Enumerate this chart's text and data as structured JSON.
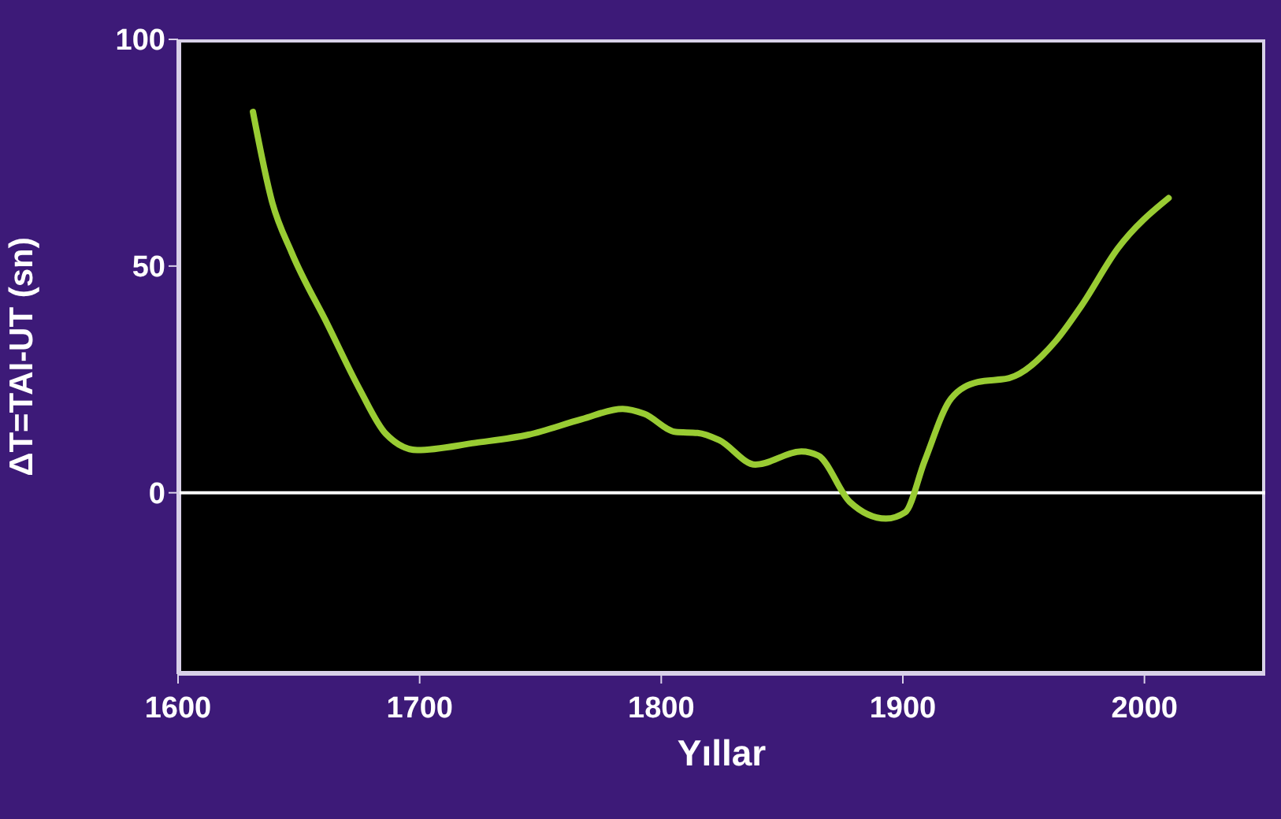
{
  "chart_data": {
    "type": "line",
    "xlabel": "Yıllar",
    "ylabel": "ΔT=TAI-UT (sn)",
    "x": [
      1631,
      1639,
      1647,
      1662,
      1675,
      1686,
      1699,
      1723,
      1745,
      1767,
      1784,
      1793,
      1806,
      1815,
      1824,
      1839,
      1858,
      1865,
      1878,
      1893,
      1901,
      1909,
      1920,
      1931,
      1944,
      1963,
      1974,
      1989,
      2010
    ],
    "series": [
      {
        "color": "#99cc33",
        "values": [
          84,
          64,
          53,
          37,
          23,
          13,
          9.4,
          11,
          12.8,
          16.2,
          18.5,
          17.4,
          13.4,
          13.2,
          11.6,
          6.2,
          9.1,
          8.2,
          -2,
          -5.7,
          -4.3,
          7,
          20.8,
          24.4,
          25.3,
          33.3,
          41.3,
          53.9,
          65
        ]
      }
    ],
    "xlim": [
      1600,
      2050
    ],
    "xticks": [
      1600,
      1700,
      1800,
      1900,
      2000
    ],
    "ylim": [
      -40,
      100
    ],
    "yticks": [
      0,
      50,
      100
    ],
    "ref_lines": [
      {
        "axis": "y",
        "value": 0,
        "color": "#ffffff"
      }
    ],
    "grid": false,
    "legend": false,
    "marker": "none",
    "line_style": "solid"
  }
}
